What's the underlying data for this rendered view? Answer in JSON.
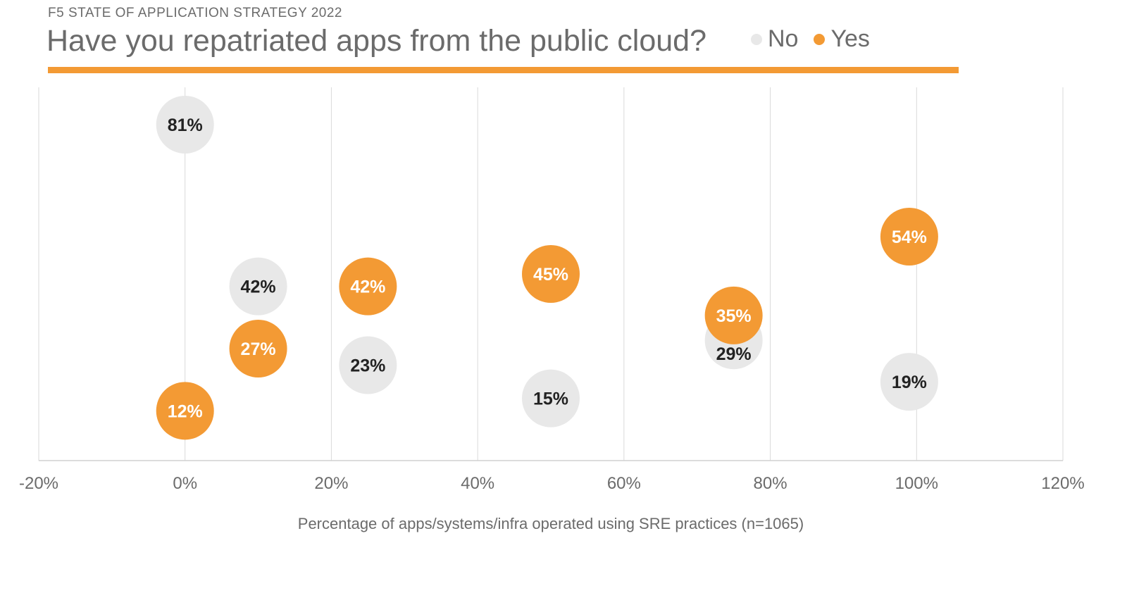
{
  "chart_data": {
    "type": "scatter",
    "supertitle": "F5 STATE OF APPLICATION STRATEGY 2022",
    "title": "Have you repatriated apps from the public cloud?",
    "xlabel": "Percentage of apps/systems/infra operated using SRE practices (n=1065)",
    "ylabel": "",
    "xlim": [
      -20,
      120
    ],
    "ylim": [
      0,
      90
    ],
    "x_ticks": [
      "-20%",
      "0%",
      "20%",
      "40%",
      "60%",
      "80%",
      "100%",
      "120%"
    ],
    "x_tick_values": [
      -20,
      0,
      20,
      40,
      60,
      80,
      100,
      120
    ],
    "grid": "vertical",
    "legend": "top-right",
    "series": [
      {
        "name": "No",
        "color": "#E8E8E8",
        "label_color": "#222222",
        "points": [
          {
            "x": 0,
            "y": 81,
            "label": "81%"
          },
          {
            "x": 10,
            "y": 42,
            "label": "42%"
          },
          {
            "x": 25,
            "y": 23,
            "label": "23%"
          },
          {
            "x": 50,
            "y": 15,
            "label": "15%"
          },
          {
            "x": 75,
            "y": 29,
            "label": "29%"
          },
          {
            "x": 99,
            "y": 19,
            "label": "19%"
          }
        ]
      },
      {
        "name": "Yes",
        "color": "#F39A34",
        "label_color": "#FFFFFF",
        "points": [
          {
            "x": 0,
            "y": 12,
            "label": "12%"
          },
          {
            "x": 10,
            "y": 27,
            "label": "27%"
          },
          {
            "x": 25,
            "y": 42,
            "label": "42%"
          },
          {
            "x": 50,
            "y": 45,
            "label": "45%"
          },
          {
            "x": 75,
            "y": 35,
            "label": "35%"
          },
          {
            "x": 99,
            "y": 54,
            "label": "54%"
          }
        ]
      }
    ]
  }
}
